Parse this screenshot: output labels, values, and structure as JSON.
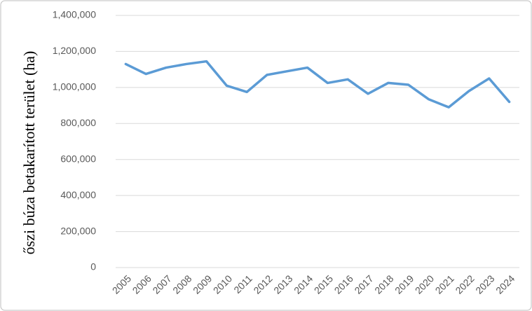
{
  "chart_data": {
    "type": "line",
    "y_axis_label": "őszi búza betakarított terület (ha)",
    "categories": [
      "2005",
      "2006",
      "2007",
      "2008",
      "2009",
      "2010",
      "2011",
      "2012",
      "2013",
      "2014",
      "2015",
      "2016",
      "2017",
      "2018",
      "2019",
      "2020",
      "2021",
      "2022",
      "2023",
      "2024"
    ],
    "series": [
      {
        "name": "őszi búza",
        "color": "#5b9bd5",
        "values": [
          1130000,
          1075000,
          1110000,
          1130000,
          1145000,
          1010000,
          975000,
          1070000,
          1090000,
          1110000,
          1025000,
          1045000,
          965000,
          1025000,
          1015000,
          935000,
          890000,
          980000,
          1050000,
          920000
        ]
      }
    ],
    "ylim": [
      0,
      1400000
    ],
    "yticks": [
      0,
      {
        "value": 200000,
        "label": "200,000"
      },
      {
        "value": 400000,
        "label": "400,000"
      },
      {
        "value": 600000,
        "label": "600,000"
      },
      {
        "value": 800000,
        "label": "800,000"
      },
      {
        "value": 1000000,
        "label": "1,000,000"
      },
      {
        "value": 1200000,
        "label": "1,200,000"
      },
      {
        "value": 1400000,
        "label": "1,400,000"
      }
    ],
    "grid": true
  }
}
